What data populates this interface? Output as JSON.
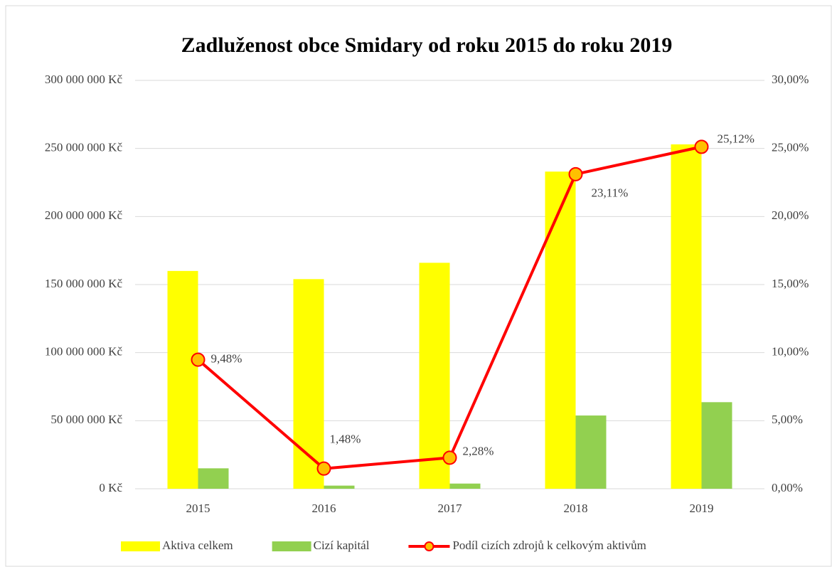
{
  "chart_data": {
    "type": "bar_line",
    "title": "Zadluženost obce Smidary od roku 2015 do roku 2019",
    "categories": [
      "2015",
      "2016",
      "2017",
      "2018",
      "2019"
    ],
    "series": [
      {
        "name": "Aktiva celkem",
        "color": "#ffff00",
        "values": [
          160000000,
          154000000,
          166000000,
          233000000,
          253000000
        ]
      },
      {
        "name": "Cizí kapitál",
        "color": "#92d050",
        "values": [
          15000000,
          2300000,
          3800000,
          53800000,
          63600000
        ]
      },
      {
        "name": "Podíl cizích zdrojů k celkovým aktivům",
        "color": "#ff0000",
        "marker_color": "#ffc000",
        "axis": "y2",
        "type": "line",
        "values": [
          9.48,
          1.48,
          2.28,
          23.11,
          25.12
        ],
        "value_labels": [
          "9,48%",
          "1,48%",
          "2,28%",
          "23,11%",
          "25,12%"
        ]
      }
    ],
    "ylim": [
      0,
      300000000
    ],
    "yticks": [
      {
        "value": 0,
        "label": "0 Kč"
      },
      {
        "value": 50000000,
        "label": "50 000 000 Kč"
      },
      {
        "value": 100000000,
        "label": "100 000 000 Kč"
      },
      {
        "value": 150000000,
        "label": "150 000 000 Kč"
      },
      {
        "value": 200000000,
        "label": "200 000 000 Kč"
      },
      {
        "value": 250000000,
        "label": "250 000 000 Kč"
      },
      {
        "value": 300000000,
        "label": "300 000 000 Kč"
      }
    ],
    "y2lim": [
      0,
      30
    ],
    "y2ticks": [
      {
        "value": 0,
        "label": "0,00%"
      },
      {
        "value": 5,
        "label": "5,00%"
      },
      {
        "value": 10,
        "label": "10,00%"
      },
      {
        "value": 15,
        "label": "15,00%"
      },
      {
        "value": 20,
        "label": "20,00%"
      },
      {
        "value": 25,
        "label": "25,00%"
      },
      {
        "value": 30,
        "label": "30,00%"
      }
    ],
    "grid": true,
    "legend": "bottom"
  }
}
